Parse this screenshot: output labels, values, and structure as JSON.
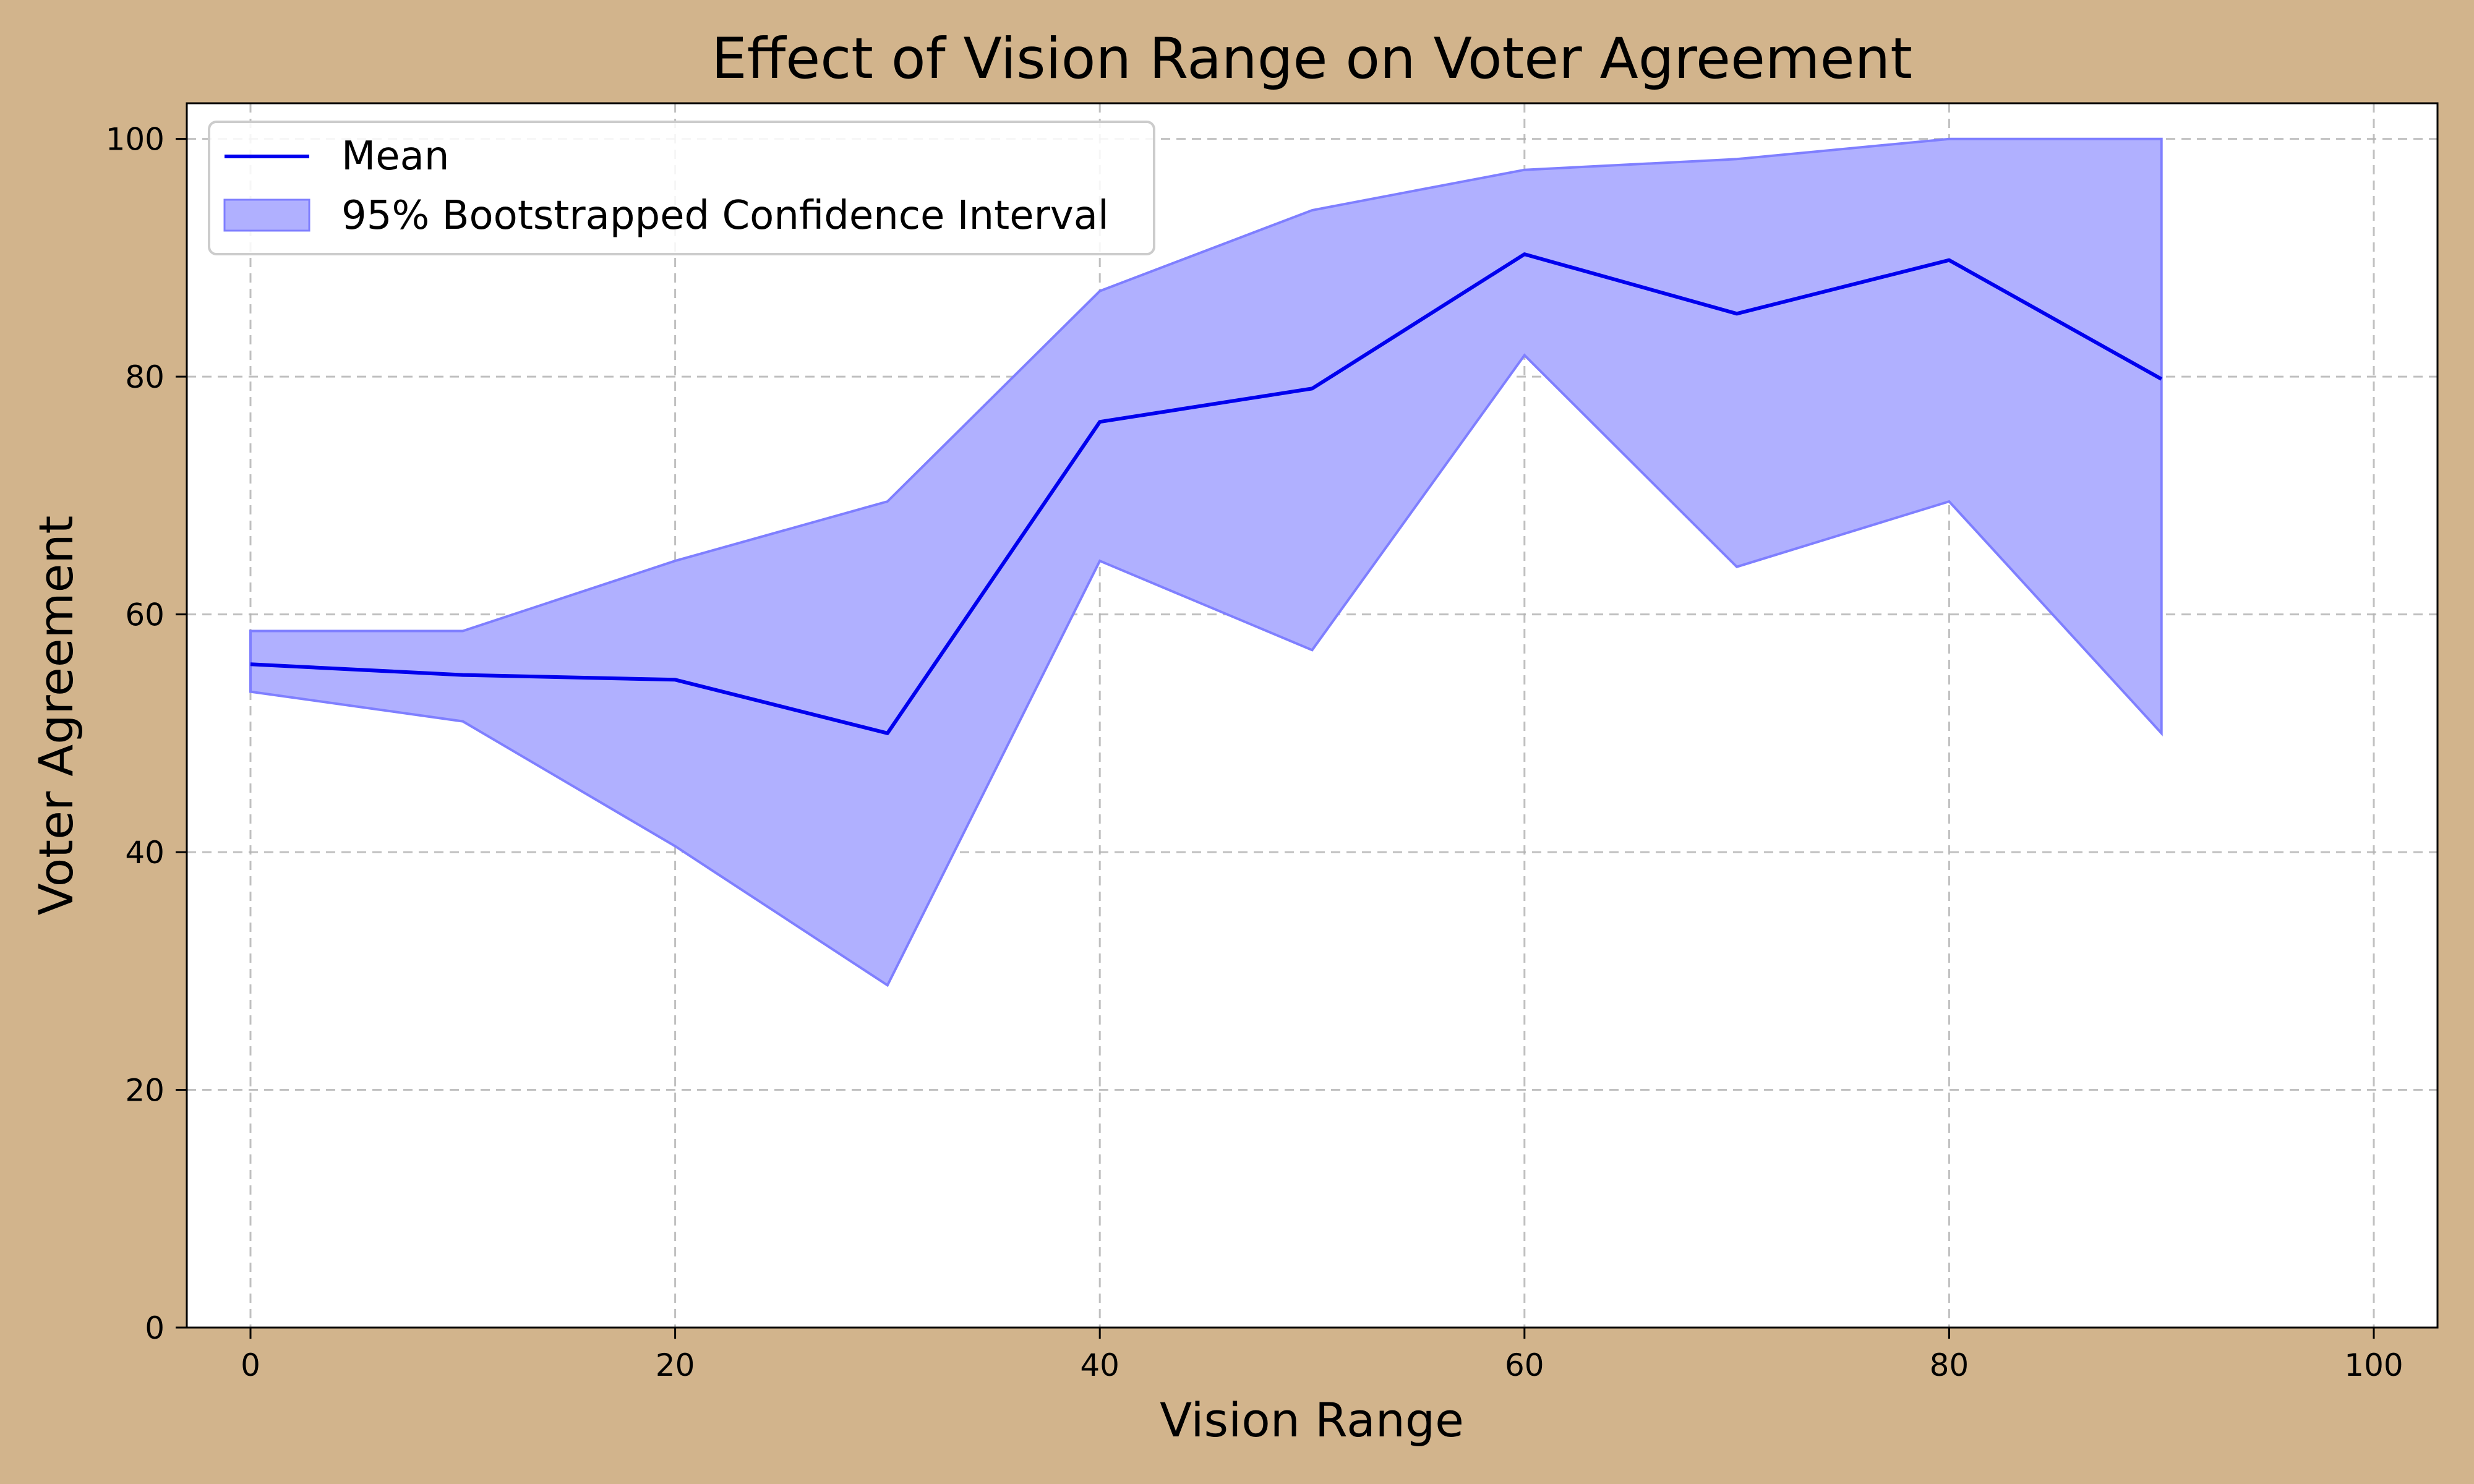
{
  "chart_data": {
    "type": "line",
    "title": "Effect of Vision Range on Voter Agreement",
    "xlabel": "Vision Range",
    "ylabel": "Voter Agreement",
    "xlim": [
      -3,
      103
    ],
    "ylim": [
      0,
      103
    ],
    "xticks": [
      0,
      20,
      40,
      60,
      80,
      100
    ],
    "yticks": [
      0,
      20,
      40,
      60,
      80,
      100
    ],
    "x": [
      0,
      10,
      20,
      30,
      40,
      50,
      60,
      70,
      80,
      90
    ],
    "series": [
      {
        "name": "Mean",
        "kind": "line",
        "values": [
          55.8,
          54.9,
          54.5,
          50.0,
          76.2,
          79.0,
          90.3,
          85.3,
          89.8,
          79.8
        ],
        "color": "#0000ee"
      },
      {
        "name": "95% Bootstrapped Confidence Interval",
        "kind": "band",
        "lower": [
          53.5,
          51.0,
          40.5,
          28.8,
          64.5,
          57.0,
          81.8,
          64.0,
          69.5,
          50.0
        ],
        "upper": [
          58.6,
          58.6,
          64.5,
          69.5,
          87.2,
          94.0,
          97.4,
          98.3,
          100.0,
          100.0
        ],
        "color": "#0000ff",
        "fill_color": "#b0b0ff"
      }
    ],
    "grid": true,
    "legend": "top-left",
    "background": "#d2b48c"
  }
}
